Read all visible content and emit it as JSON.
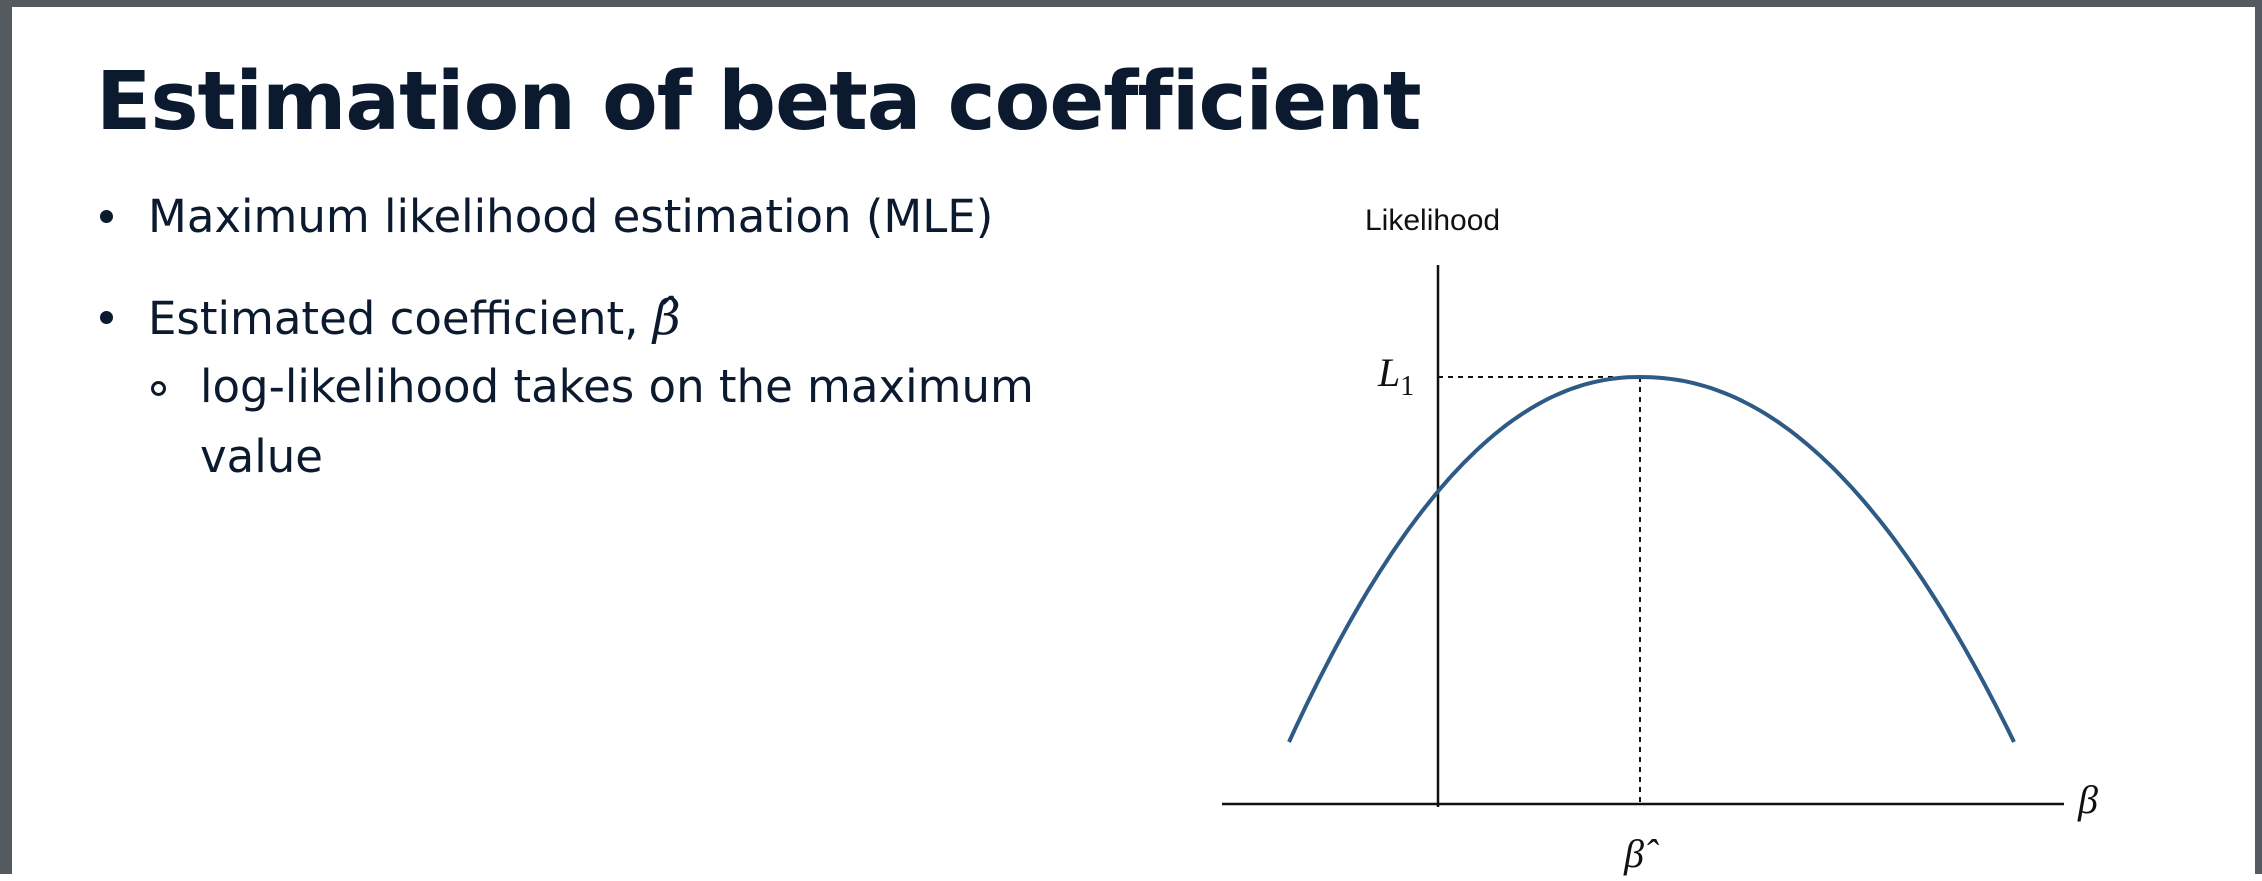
{
  "slide": {
    "title": "Estimation of beta coefficient",
    "bullets": [
      {
        "level": 1,
        "text": "Maximum likelihood estimation (MLE)"
      },
      {
        "level": 1,
        "text": "Estimated coefficient, ",
        "math": "β̂"
      },
      {
        "level": 2,
        "text": "log-likelihood takes on the maximum",
        "continuation": "value"
      }
    ]
  },
  "figure": {
    "y_axis_label": "Likelihood",
    "x_axis_label": "β",
    "peak_label": "L",
    "peak_label_subscript": "1",
    "peak_x_label": "β̂",
    "curve_color": "#2e5a86"
  }
}
